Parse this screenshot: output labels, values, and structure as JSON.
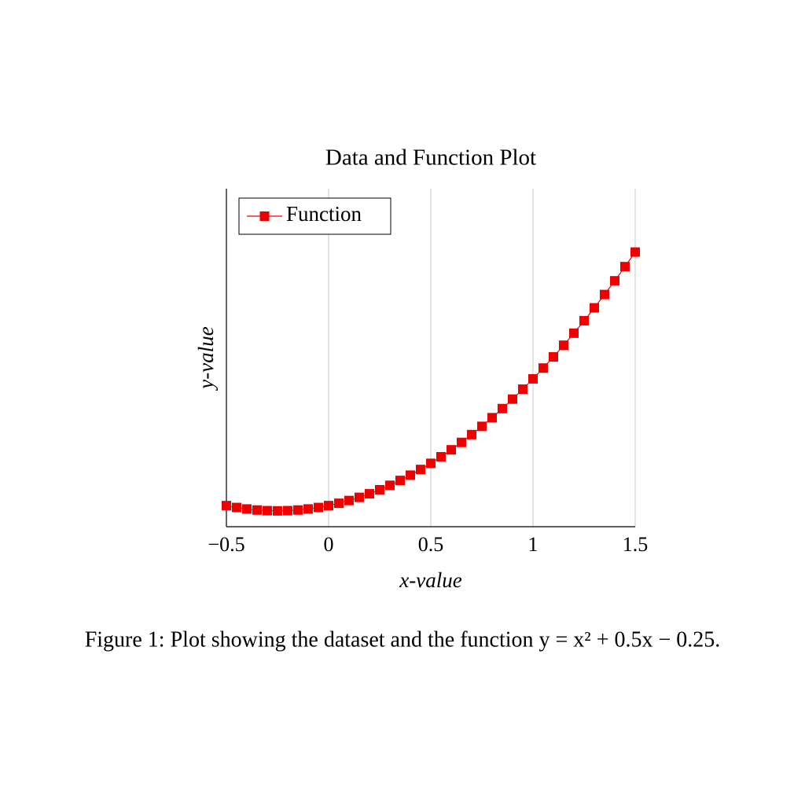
{
  "chart_data": {
    "type": "line",
    "title": "Data and Function Plot",
    "x_label": "x-value",
    "y_label": "y-value",
    "caption": "Figure 1: Plot showing the dataset and the function y = x² + 0.5x − 0.25.",
    "x": [
      -0.5,
      -0.45,
      -0.4,
      -0.35,
      -0.3,
      -0.25,
      -0.2,
      -0.15,
      -0.1,
      -0.05,
      0,
      0.05,
      0.1,
      0.15,
      0.2,
      0.25,
      0.3,
      0.35,
      0.4,
      0.45,
      0.5,
      0.55,
      0.6,
      0.65,
      0.7,
      0.75,
      0.8,
      0.85,
      0.9,
      0.95,
      1,
      1.05,
      1.1,
      1.15,
      1.2,
      1.25,
      1.3,
      1.35,
      1.4,
      1.45,
      1.5
    ],
    "series": [
      {
        "name": "Function",
        "color": "#ee0000",
        "values": [
          -0.25,
          -0.2725,
          -0.29,
          -0.3025,
          -0.31,
          -0.3125,
          -0.31,
          -0.3025,
          -0.29,
          -0.2725,
          -0.25,
          -0.2225,
          -0.19,
          -0.1525,
          -0.11,
          -0.0625,
          -0.01,
          0.0475,
          0.11,
          0.1775,
          0.25,
          0.3275,
          0.41,
          0.4975,
          0.59,
          0.6875,
          0.79,
          0.8975,
          1.01,
          1.1275,
          1.25,
          1.3775,
          1.51,
          1.6475,
          1.79,
          1.9375,
          2.09,
          2.2475,
          2.41,
          2.5775,
          2.75
        ]
      }
    ],
    "xlim": [
      -0.5,
      1.5
    ],
    "ylim": [
      -0.5,
      3.5
    ],
    "xticks": [
      {
        "value": -0.5,
        "label": "−0.5"
      },
      0,
      0.5,
      1,
      1.5
    ],
    "grid": "x",
    "legend": "top-left"
  }
}
